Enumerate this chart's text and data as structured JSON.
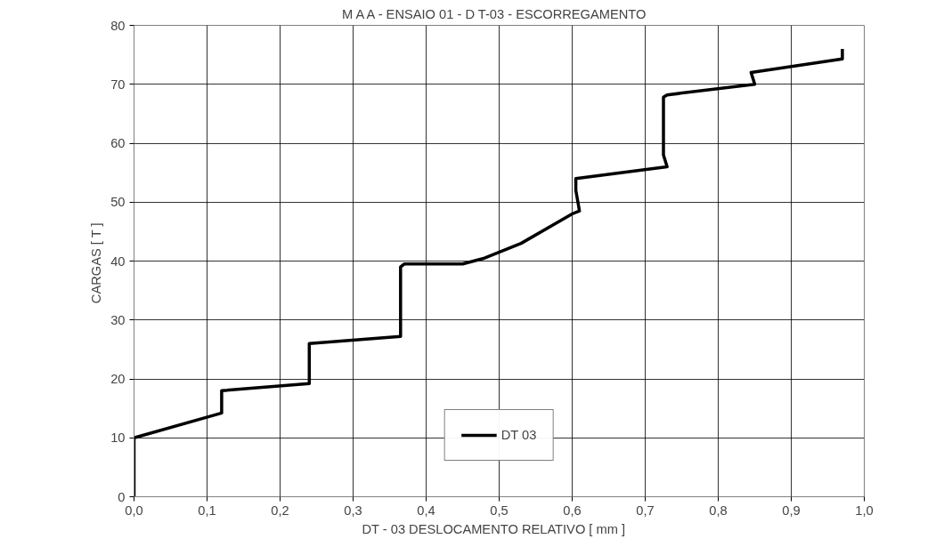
{
  "chart_data": {
    "type": "line",
    "title": "M A A - ENSAIO 01  -  D T-03 - ESCORREGAMENTO",
    "xlabel": "DT - 03    DESLOCAMENTO RELATIVO [ mm ]",
    "ylabel": "CARGAS  [ T ]",
    "xlim": [
      0,
      1
    ],
    "xticks": [
      {
        "value": 0,
        "label": "0,0"
      },
      {
        "value": 0.1,
        "label": "0,1"
      },
      {
        "value": 0.2,
        "label": "0,2"
      },
      {
        "value": 0.3,
        "label": "0,3"
      },
      {
        "value": 0.4,
        "label": "0,4"
      },
      {
        "value": 0.5,
        "label": "0,5"
      },
      {
        "value": 0.6,
        "label": "0,6"
      },
      {
        "value": 0.7,
        "label": "0,7"
      },
      {
        "value": 0.8,
        "label": "0,8"
      },
      {
        "value": 0.9,
        "label": "0,9"
      },
      {
        "value": 1,
        "label": "1,0"
      }
    ],
    "ylim": [
      0,
      80
    ],
    "yticks": [
      0,
      10,
      20,
      30,
      40,
      50,
      60,
      70,
      80
    ],
    "grid": true,
    "legend": "bottom",
    "marker": "none",
    "line_style": "solid",
    "x": [
      0,
      0,
      0.12,
      0.12,
      0.24,
      0.24,
      0.365,
      0.365,
      0.37,
      0.45,
      0.48,
      0.53,
      0.6,
      0.61,
      0.605,
      0.605,
      0.73,
      0.725,
      0.725,
      0.73,
      0.85,
      0.845,
      0.97,
      0.97
    ],
    "series": [
      {
        "name": "DT 03",
        "color": "#000000",
        "values": [
          0,
          10,
          14.2,
          18,
          19.2,
          26,
          27.2,
          39,
          39.5,
          39.5,
          40.5,
          43,
          48,
          48.5,
          52,
          54,
          56,
          58,
          67.8,
          68.2,
          70,
          72,
          74.3,
          76
        ]
      }
    ]
  }
}
